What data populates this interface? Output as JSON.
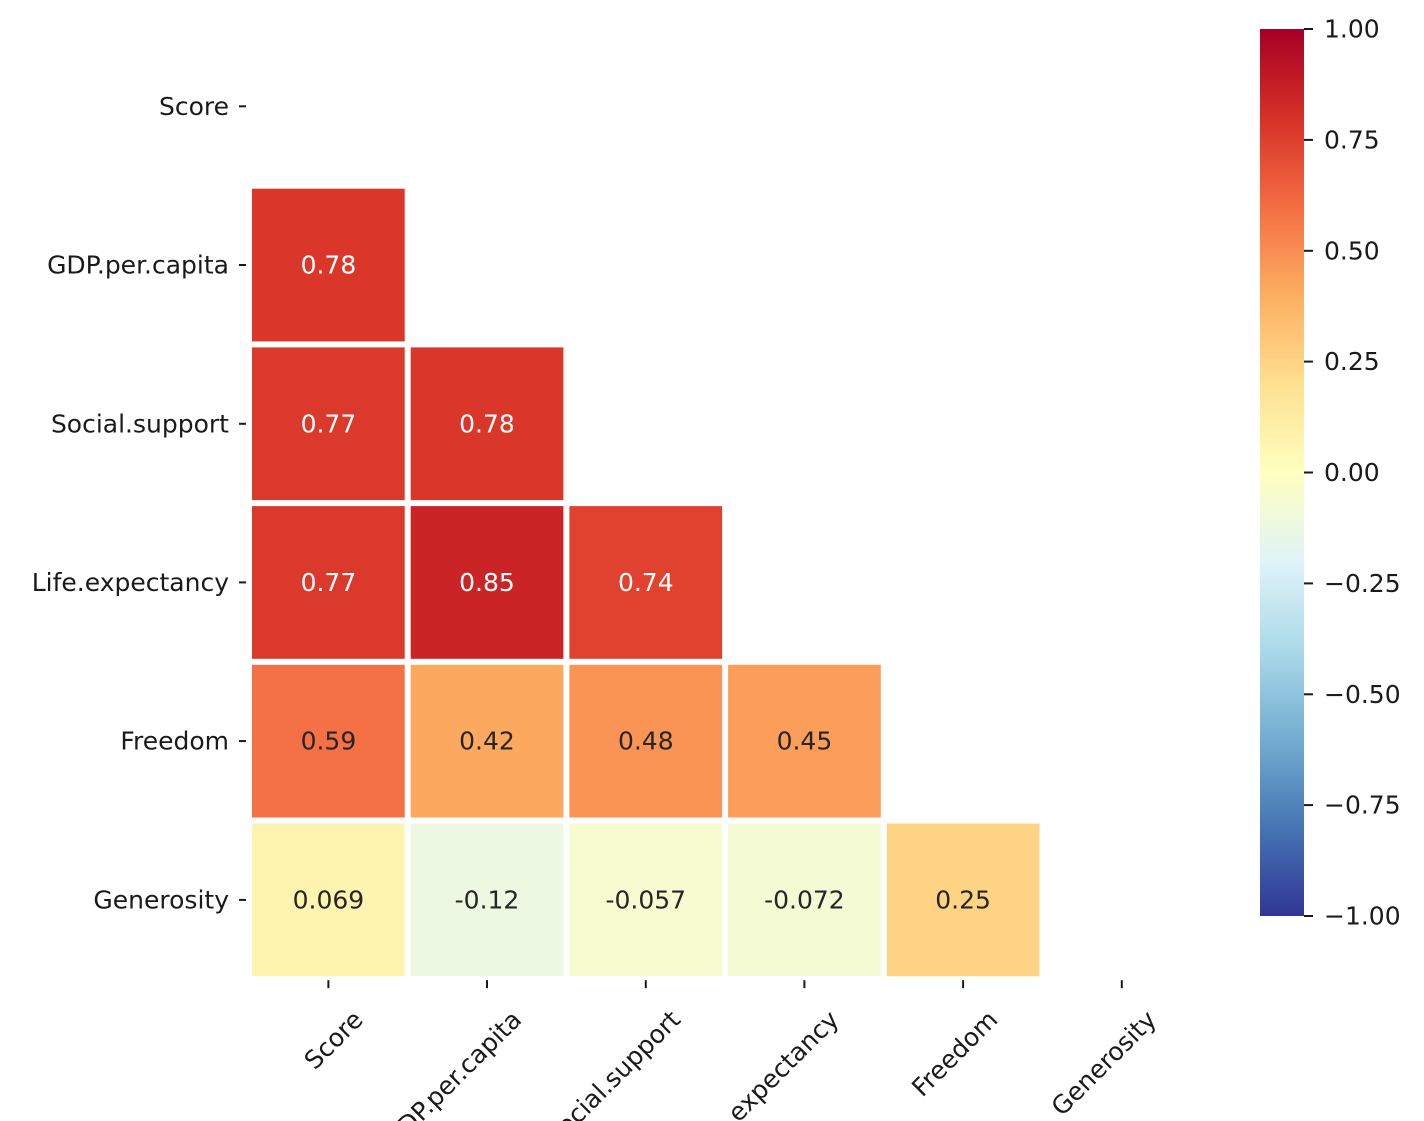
{
  "chart_data": {
    "type": "heatmap",
    "title": "",
    "xlabel": "",
    "ylabel": "",
    "variables": [
      "Score",
      "GDP.per.capita",
      "Social.support",
      "Life.expectancy",
      "Freedom",
      "Generosity"
    ],
    "mask": "upper-triangle-and-diagonal",
    "cells": [
      {
        "row": 1,
        "col": 0,
        "value": 0.78,
        "label": "0.78"
      },
      {
        "row": 2,
        "col": 0,
        "value": 0.77,
        "label": "0.77"
      },
      {
        "row": 2,
        "col": 1,
        "value": 0.78,
        "label": "0.78"
      },
      {
        "row": 3,
        "col": 0,
        "value": 0.77,
        "label": "0.77"
      },
      {
        "row": 3,
        "col": 1,
        "value": 0.85,
        "label": "0.85"
      },
      {
        "row": 3,
        "col": 2,
        "value": 0.74,
        "label": "0.74"
      },
      {
        "row": 4,
        "col": 0,
        "value": 0.59,
        "label": "0.59"
      },
      {
        "row": 4,
        "col": 1,
        "value": 0.42,
        "label": "0.42"
      },
      {
        "row": 4,
        "col": 2,
        "value": 0.48,
        "label": "0.48"
      },
      {
        "row": 4,
        "col": 3,
        "value": 0.45,
        "label": "0.45"
      },
      {
        "row": 5,
        "col": 0,
        "value": 0.069,
        "label": "0.069"
      },
      {
        "row": 5,
        "col": 1,
        "value": -0.12,
        "label": "-0.12"
      },
      {
        "row": 5,
        "col": 2,
        "value": -0.057,
        "label": "-0.057"
      },
      {
        "row": 5,
        "col": 3,
        "value": -0.072,
        "label": "-0.072"
      },
      {
        "row": 5,
        "col": 4,
        "value": 0.25,
        "label": "0.25"
      }
    ],
    "colorbar": {
      "colormap": "RdYlBu_r",
      "vmin": -1.0,
      "vmax": 1.0,
      "ticks": [
        1.0,
        0.75,
        0.5,
        0.25,
        0.0,
        -0.25,
        -0.5,
        -0.75,
        -1.0
      ],
      "tick_labels": [
        "1.00",
        "0.75",
        "0.50",
        "0.25",
        "0.00",
        "−0.25",
        "−0.50",
        "−0.75",
        "−1.00"
      ]
    },
    "x_tick_rotation": "45 degrees"
  }
}
